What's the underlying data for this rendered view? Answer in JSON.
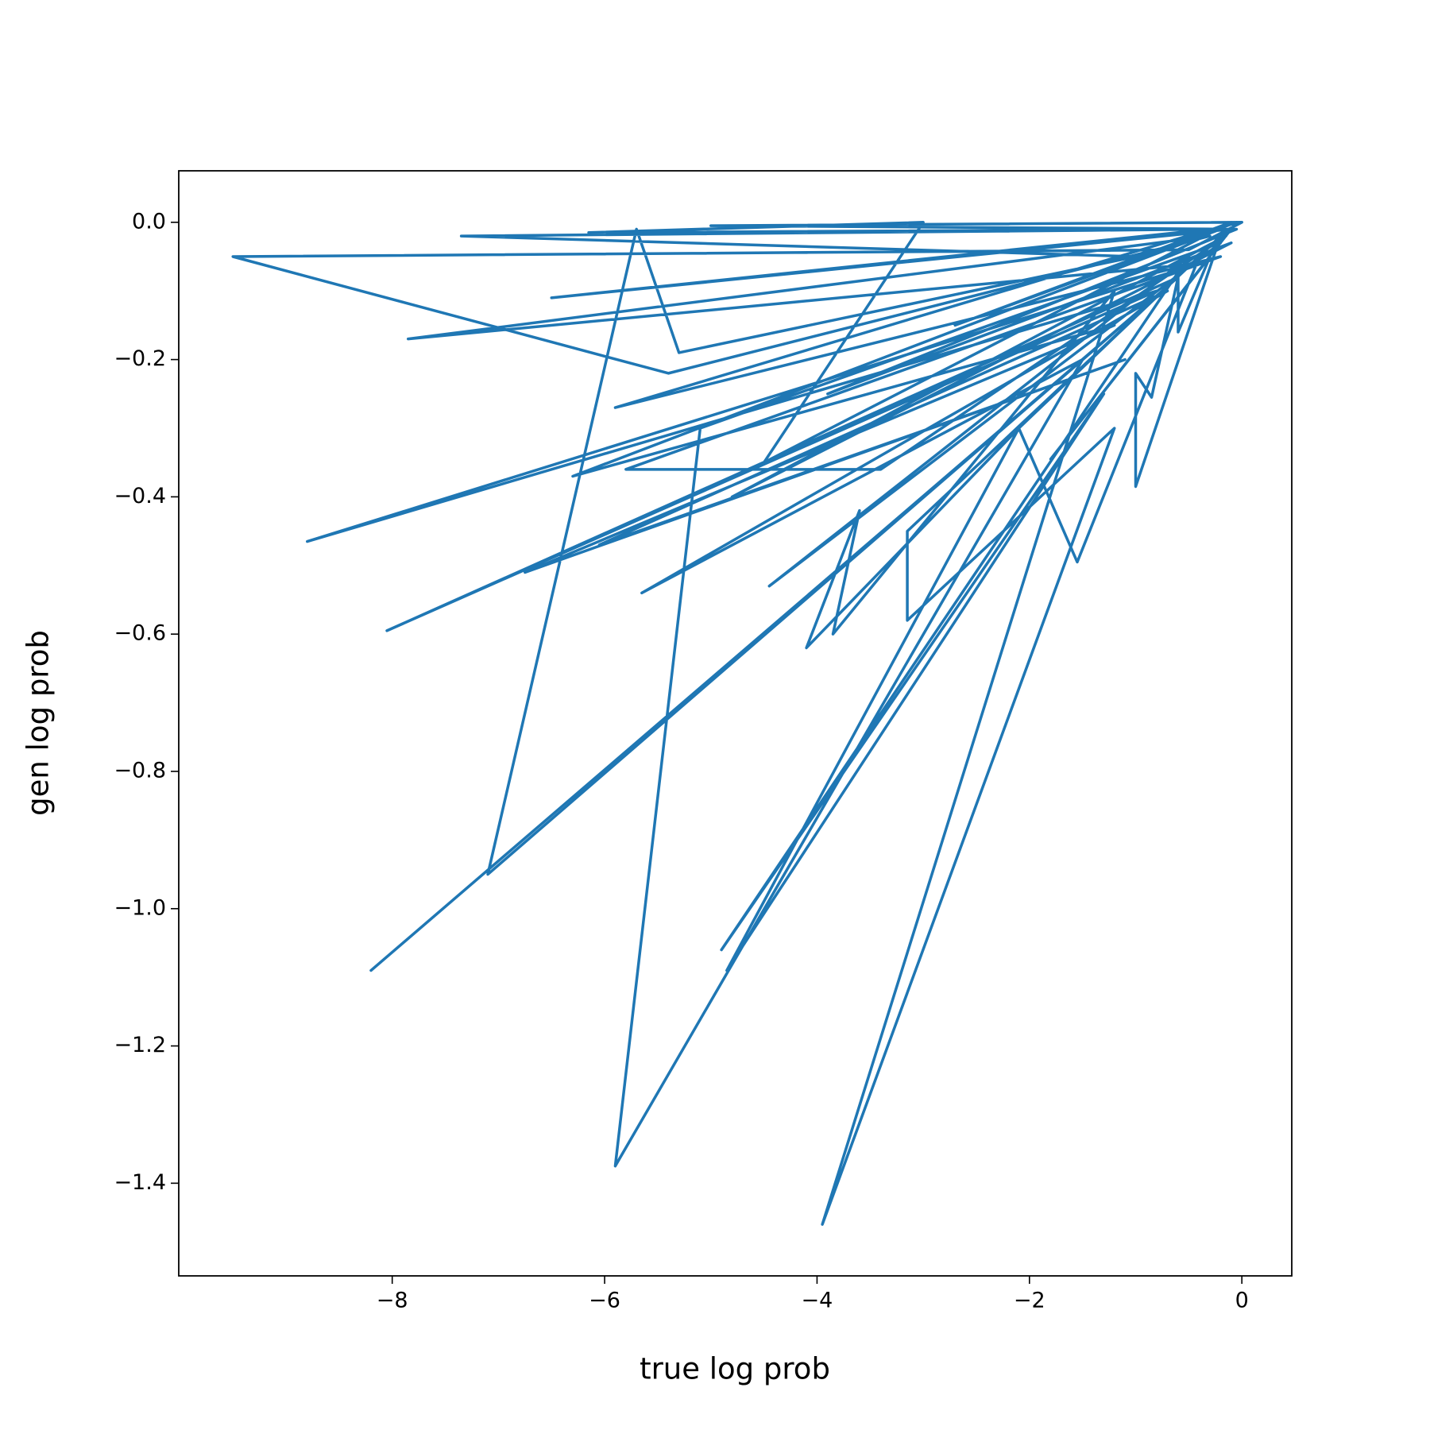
{
  "chart_data": {
    "type": "line",
    "x_label": "true log prob",
    "y_label": "gen log prob",
    "color": "#1f77b4",
    "xlim": [
      -10.01,
      0.47
    ],
    "ylim": [
      -1.535,
      0.075
    ],
    "xticks": [
      {
        "value": -8,
        "label": "−8"
      },
      {
        "value": -6,
        "label": "−6"
      },
      {
        "value": -4,
        "label": "−4"
      },
      {
        "value": -2,
        "label": "−2"
      },
      0
    ],
    "yticks": [
      {
        "value": 0,
        "label": "0.0"
      },
      {
        "value": -0.2,
        "label": "−0.2"
      },
      {
        "value": -0.4,
        "label": "−0.4"
      },
      {
        "value": -0.6,
        "label": "−0.6"
      },
      {
        "value": -0.8,
        "label": "−0.8"
      },
      {
        "value": -1.0,
        "label": "−1.0"
      },
      {
        "value": -1.2,
        "label": "−1.2"
      },
      {
        "value": -1.4,
        "label": "−1.4"
      }
    ],
    "series": [
      {
        "name": "gen log prob",
        "color": "#1f77b4",
        "x": [
          0,
          -0.5,
          -9.5,
          -5.4,
          -0.3,
          -7.85,
          -0.4,
          -8.8,
          -0.8,
          -8.05,
          -0.6,
          -8.2,
          -0.9,
          -7.1,
          -5.7,
          -5.3,
          -1.0,
          -7.35,
          -0.2,
          -6.3,
          -1.2,
          -6.75,
          -1.1,
          -6.05,
          -0.7,
          -5.65,
          -1.5,
          -5.9,
          -5.1,
          -0.2,
          -4.45,
          -0.5,
          -4.9,
          -1.3,
          -4.85,
          -2.1,
          -4.1,
          -3.6,
          -3.85,
          -1.2,
          -3.95,
          -1.2,
          -3.15,
          -3.15,
          -0.4,
          -1.55,
          -2.1,
          -0.2,
          -1.0,
          -1.0,
          -0.85,
          -0.6,
          -0.6,
          -0.3,
          -1.8,
          -0.05,
          -2.7,
          -0.1,
          -4.5,
          -3.0,
          -6.15,
          -0.1,
          -6.5,
          -0.3,
          -5.9,
          -0.2,
          -5.8,
          -3.4,
          -0.15,
          -4.8,
          -0.1,
          -3.9,
          -0.05,
          -5.0,
          0
        ],
        "values": [
          0,
          -0.04,
          -0.05,
          -0.22,
          -0.02,
          -0.17,
          -0.06,
          -0.465,
          -0.1,
          -0.595,
          -0.08,
          -1.09,
          -0.12,
          -0.95,
          -0.01,
          -0.19,
          -0.05,
          -0.02,
          -0.01,
          -0.37,
          -0.15,
          -0.51,
          -0.2,
          -0.47,
          -0.1,
          -0.54,
          -0.2,
          -1.375,
          -0.3,
          -0.03,
          -0.53,
          -0.05,
          -1.06,
          -0.25,
          -1.09,
          -0.3,
          -0.62,
          -0.42,
          -0.6,
          -0.1,
          -1.46,
          -0.3,
          -0.58,
          -0.45,
          -0.05,
          -0.495,
          -0.3,
          -0.02,
          -0.385,
          -0.22,
          -0.255,
          -0.08,
          -0.16,
          -0.05,
          -0.345,
          0,
          -0.15,
          0,
          -0.35,
          0,
          -0.015,
          -0.01,
          -0.11,
          -0.01,
          -0.27,
          -0.05,
          -0.36,
          -0.36,
          -0.02,
          -0.4,
          -0.03,
          -0.25,
          -0.01,
          -0.005,
          0
        ]
      }
    ]
  }
}
